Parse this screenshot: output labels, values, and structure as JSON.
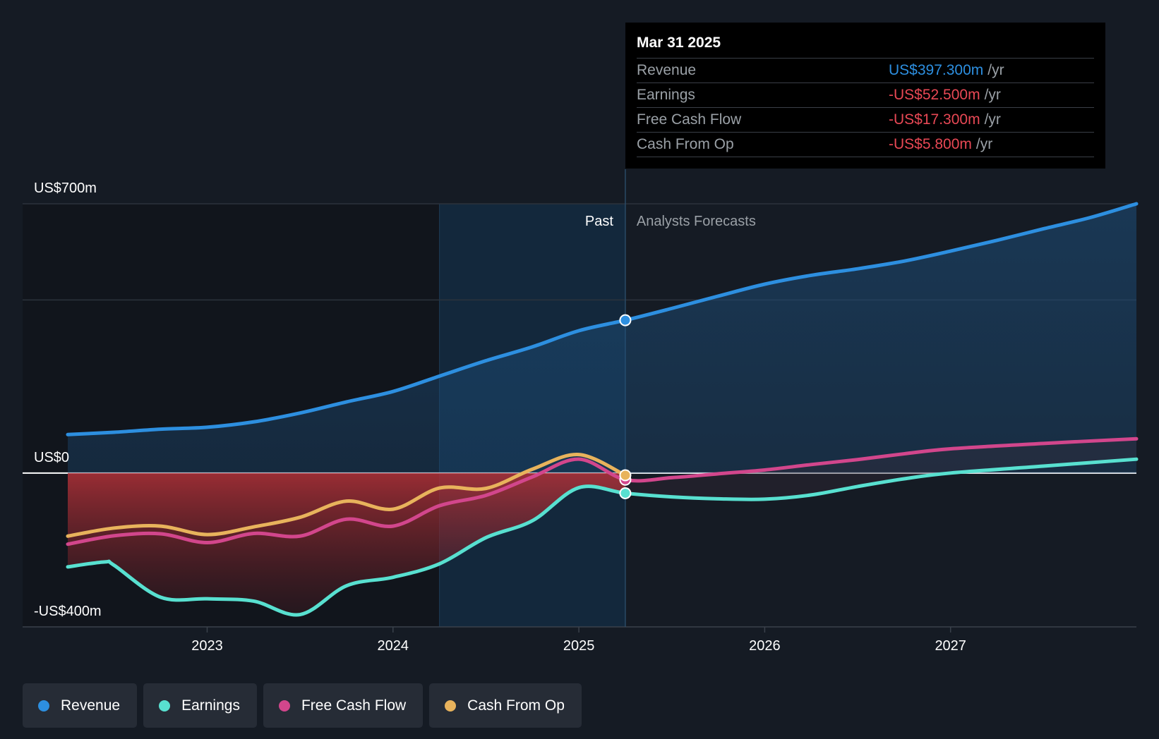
{
  "chart_data": {
    "type": "area",
    "y_axis": {
      "min": -400,
      "max": 700,
      "labels": [
        {
          "value": 700,
          "text": "US$700m"
        },
        {
          "value": 0,
          "text": "US$0"
        },
        {
          "value": -400,
          "text": "-US$400m"
        }
      ]
    },
    "x_axis": {
      "min": 2022.25,
      "max": 2028.0,
      "ticks": [
        2023,
        2024,
        2025,
        2026,
        2027
      ],
      "tick_labels": [
        "2023",
        "2024",
        "2025",
        "2026",
        "2027"
      ]
    },
    "past_boundary": 2025.25,
    "highlight_start": 2024.25,
    "past_label": "Past",
    "forecast_label": "Analysts Forecasts",
    "series": [
      {
        "name": "Revenue",
        "color": "#2d8fe0",
        "points": [
          [
            2022.25,
            100
          ],
          [
            2022.5,
            106
          ],
          [
            2022.75,
            114
          ],
          [
            2023.0,
            119
          ],
          [
            2023.25,
            133
          ],
          [
            2023.5,
            156
          ],
          [
            2023.75,
            185
          ],
          [
            2024.0,
            212
          ],
          [
            2024.25,
            252
          ],
          [
            2024.5,
            292
          ],
          [
            2024.75,
            328
          ],
          [
            2025.0,
            370
          ],
          [
            2025.25,
            397.3
          ],
          [
            2025.5,
            428
          ],
          [
            2025.75,
            460
          ],
          [
            2026.0,
            491
          ],
          [
            2026.25,
            514
          ],
          [
            2026.5,
            531
          ],
          [
            2026.75,
            551
          ],
          [
            2027.0,
            577
          ],
          [
            2027.25,
            605
          ],
          [
            2027.5,
            635
          ],
          [
            2027.75,
            664
          ],
          [
            2028.0,
            700
          ]
        ]
      },
      {
        "name": "Earnings",
        "color": "#58e0d0",
        "points": [
          [
            2022.25,
            -244
          ],
          [
            2022.45,
            -231
          ],
          [
            2022.5,
            -240
          ],
          [
            2022.75,
            -323
          ],
          [
            2023.0,
            -327
          ],
          [
            2023.25,
            -333
          ],
          [
            2023.5,
            -368
          ],
          [
            2023.75,
            -293
          ],
          [
            2024.0,
            -271
          ],
          [
            2024.25,
            -236
          ],
          [
            2024.5,
            -168
          ],
          [
            2024.75,
            -124
          ],
          [
            2025.0,
            -38
          ],
          [
            2025.25,
            -52.5
          ],
          [
            2025.5,
            -62
          ],
          [
            2025.75,
            -67
          ],
          [
            2026.0,
            -68
          ],
          [
            2026.25,
            -57
          ],
          [
            2026.5,
            -35
          ],
          [
            2026.75,
            -15
          ],
          [
            2027.0,
            0
          ],
          [
            2027.5,
            18
          ],
          [
            2028.0,
            36
          ]
        ]
      },
      {
        "name": "Free Cash Flow",
        "color": "#d2468c",
        "points": [
          [
            2022.25,
            -185
          ],
          [
            2022.5,
            -163
          ],
          [
            2022.75,
            -158
          ],
          [
            2023.0,
            -181
          ],
          [
            2023.25,
            -157
          ],
          [
            2023.5,
            -164
          ],
          [
            2023.75,
            -120
          ],
          [
            2024.0,
            -138
          ],
          [
            2024.25,
            -85
          ],
          [
            2024.5,
            -58
          ],
          [
            2024.75,
            -10
          ],
          [
            2025.0,
            36
          ],
          [
            2025.25,
            -17.3
          ],
          [
            2025.5,
            -12
          ],
          [
            2025.75,
            -2
          ],
          [
            2026.0,
            8
          ],
          [
            2026.25,
            22
          ],
          [
            2026.5,
            35
          ],
          [
            2026.75,
            50
          ],
          [
            2027.0,
            63
          ],
          [
            2027.5,
            77
          ],
          [
            2028.0,
            89
          ]
        ]
      },
      {
        "name": "Cash From Op",
        "color": "#e8b35c",
        "points": [
          [
            2022.25,
            -164
          ],
          [
            2022.5,
            -143
          ],
          [
            2022.75,
            -138
          ],
          [
            2023.0,
            -160
          ],
          [
            2023.25,
            -140
          ],
          [
            2023.5,
            -115
          ],
          [
            2023.75,
            -73
          ],
          [
            2024.0,
            -94
          ],
          [
            2024.25,
            -39
          ],
          [
            2024.5,
            -40
          ],
          [
            2024.75,
            10
          ],
          [
            2025.0,
            48
          ],
          [
            2025.25,
            -5.8
          ]
        ]
      }
    ]
  },
  "tooltip": {
    "date": "Mar 31 2025",
    "rows": [
      {
        "label": "Revenue",
        "value": "US$397.300m",
        "unit": "/yr",
        "color": "#2d8fe0"
      },
      {
        "label": "Earnings",
        "value": "-US$52.500m",
        "unit": "/yr",
        "color": "#e84855"
      },
      {
        "label": "Free Cash Flow",
        "value": "-US$17.300m",
        "unit": "/yr",
        "color": "#e84855"
      },
      {
        "label": "Cash From Op",
        "value": "-US$5.800m",
        "unit": "/yr",
        "color": "#e84855"
      }
    ]
  },
  "legend": [
    {
      "label": "Revenue",
      "color": "#2d8fe0"
    },
    {
      "label": "Earnings",
      "color": "#58e0d0"
    },
    {
      "label": "Free Cash Flow",
      "color": "#d2468c"
    },
    {
      "label": "Cash From Op",
      "color": "#e8b35c"
    }
  ]
}
